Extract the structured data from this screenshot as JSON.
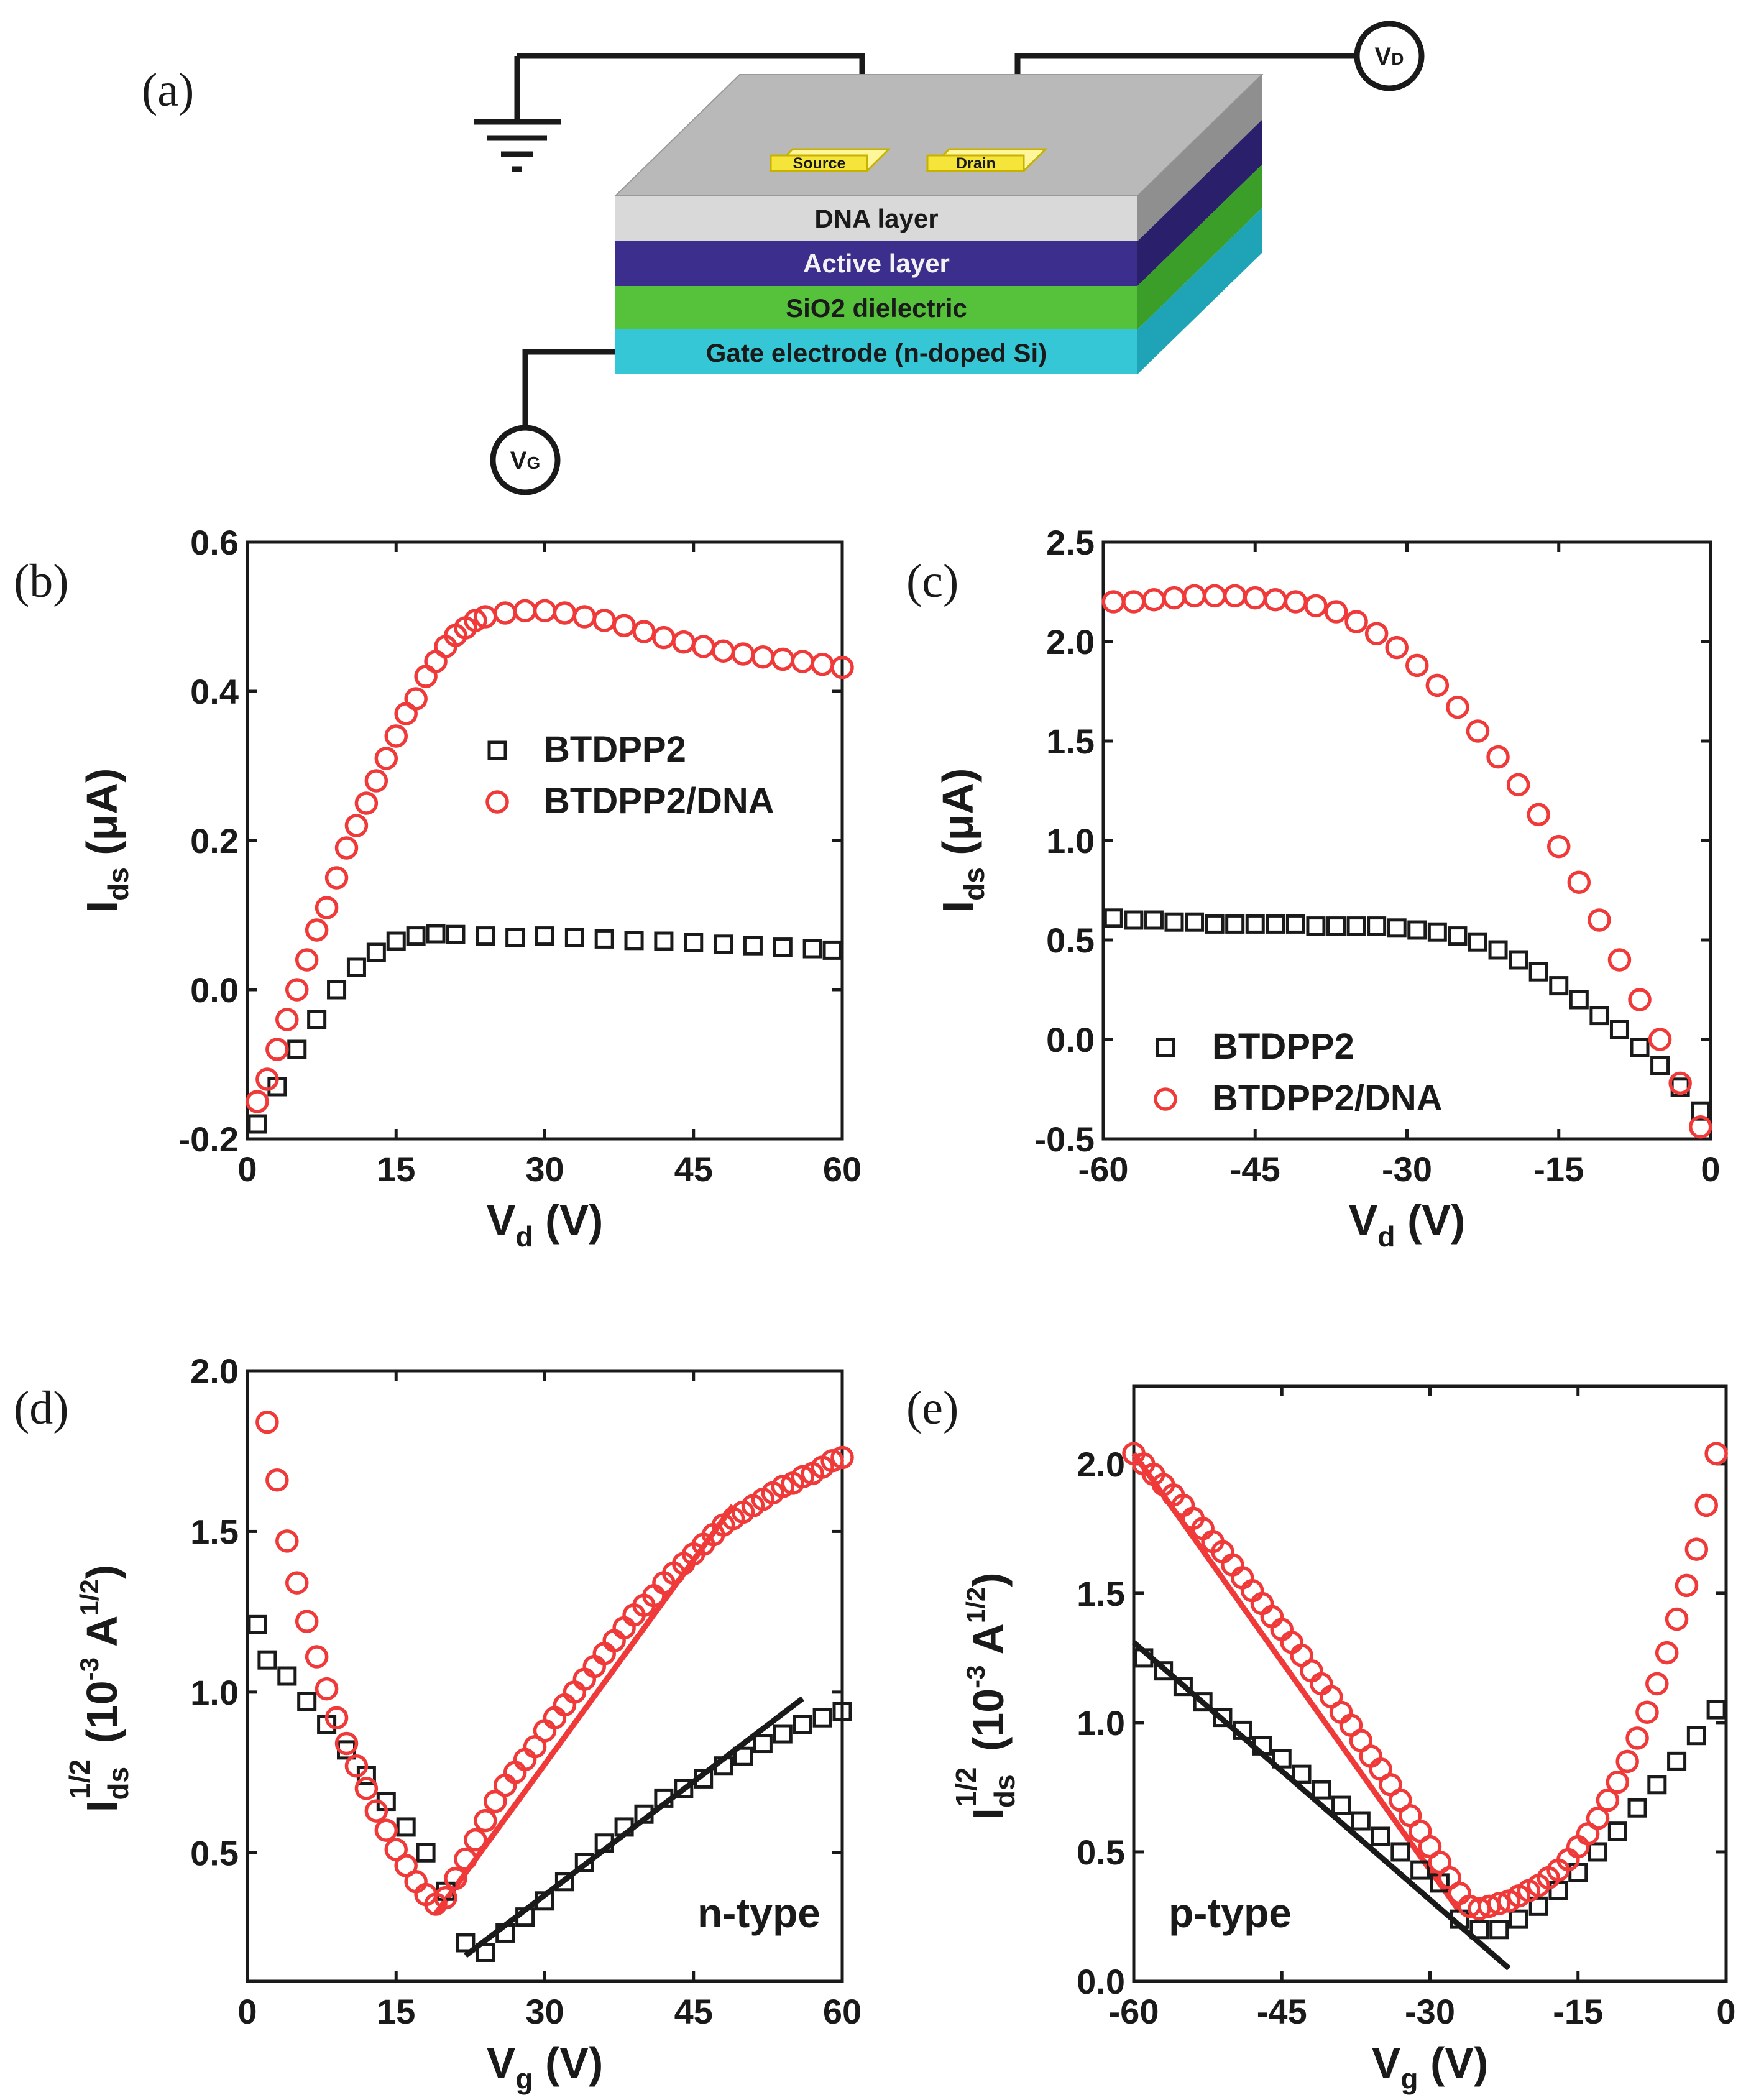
{
  "figure": {
    "panel_a": {
      "label": "(a)",
      "layers": [
        "DNA layer",
        "Active layer",
        "SiO2 dielectric",
        "Gate electrode (n-doped Si)"
      ],
      "source_label": "Source",
      "drain_label": "Drain",
      "vd_label": "V",
      "vd_sub": "D",
      "vg_label": "V",
      "vg_sub": "G",
      "colors": {
        "dna": "#c9c9c9",
        "active": "#3c2e8c",
        "sio2": "#56c23c",
        "gate": "#2ec5d6",
        "pad": "#f5e43a"
      }
    }
  },
  "chart_data": [
    {
      "id": "b",
      "label": "(b)",
      "type": "scatter",
      "xlabel": "V",
      "xlabel_sub": "d",
      "xlabel_unit": " (V)",
      "ylabel": "I",
      "ylabel_sub": "ds",
      "ylabel_unit": " (μA)",
      "xlim": [
        0,
        60
      ],
      "ylim": [
        -0.2,
        0.6
      ],
      "xticks": [
        0,
        15,
        30,
        45,
        60
      ],
      "xtick_labels": [
        "0",
        "15",
        "30",
        "45",
        "60"
      ],
      "yticks": [
        -0.2,
        0.0,
        0.2,
        0.4,
        0.6
      ],
      "ytick_labels": [
        "-0.2",
        "0.0",
        "0.2",
        "0.4",
        "0.6"
      ],
      "legend_position": "center-right",
      "series": [
        {
          "name": "BTDPP2",
          "marker": "square",
          "color": "#1a1a1a",
          "x": [
            1,
            3,
            5,
            7,
            9,
            11,
            13,
            15,
            17,
            19,
            21,
            24,
            27,
            30,
            33,
            36,
            39,
            42,
            45,
            48,
            51,
            54,
            57,
            59
          ],
          "y": [
            -0.18,
            -0.13,
            -0.08,
            -0.04,
            0.0,
            0.03,
            0.05,
            0.065,
            0.072,
            0.075,
            0.074,
            0.072,
            0.07,
            0.072,
            0.07,
            0.068,
            0.066,
            0.065,
            0.063,
            0.061,
            0.059,
            0.057,
            0.055,
            0.053
          ]
        },
        {
          "name": "BTDPP2/DNA",
          "marker": "circle",
          "color": "#f03a3a",
          "x": [
            1,
            2,
            3,
            4,
            5,
            6,
            7,
            8,
            9,
            10,
            11,
            12,
            13,
            14,
            15,
            16,
            17,
            18,
            19,
            20,
            21,
            22,
            23,
            24,
            26,
            28,
            30,
            32,
            34,
            36,
            38,
            40,
            42,
            44,
            46,
            48,
            50,
            52,
            54,
            56,
            58,
            60
          ],
          "y": [
            -0.15,
            -0.12,
            -0.08,
            -0.04,
            0.0,
            0.04,
            0.08,
            0.11,
            0.15,
            0.19,
            0.22,
            0.25,
            0.28,
            0.31,
            0.34,
            0.37,
            0.39,
            0.42,
            0.44,
            0.46,
            0.475,
            0.485,
            0.495,
            0.5,
            0.505,
            0.508,
            0.508,
            0.505,
            0.5,
            0.495,
            0.488,
            0.48,
            0.472,
            0.466,
            0.46,
            0.454,
            0.45,
            0.446,
            0.443,
            0.44,
            0.436,
            0.432
          ]
        }
      ]
    },
    {
      "id": "c",
      "label": "(c)",
      "type": "scatter",
      "xlabel": "V",
      "xlabel_sub": "d",
      "xlabel_unit": " (V)",
      "ylabel": "I",
      "ylabel_sub": "ds",
      "ylabel_unit": " (μA)",
      "xlim": [
        -60,
        0
      ],
      "ylim": [
        -0.5,
        2.5
      ],
      "xticks": [
        -60,
        -45,
        -30,
        -15,
        0
      ],
      "xtick_labels": [
        "-60",
        "-45",
        "-30",
        "-15",
        "0"
      ],
      "yticks": [
        -0.5,
        0.0,
        0.5,
        1.0,
        1.5,
        2.0,
        2.5
      ],
      "ytick_labels": [
        "-0.5",
        "0.0",
        "0.5",
        "1.0",
        "1.5",
        "2.0",
        "2.5"
      ],
      "legend_position": "bottom-left",
      "series": [
        {
          "name": "BTDPP2",
          "marker": "square",
          "color": "#1a1a1a",
          "x": [
            -59,
            -57,
            -55,
            -53,
            -51,
            -49,
            -47,
            -45,
            -43,
            -41,
            -39,
            -37,
            -35,
            -33,
            -31,
            -29,
            -27,
            -25,
            -23,
            -21,
            -19,
            -17,
            -15,
            -13,
            -11,
            -9,
            -7,
            -5,
            -3,
            -1
          ],
          "y": [
            0.61,
            0.6,
            0.6,
            0.59,
            0.59,
            0.58,
            0.58,
            0.58,
            0.58,
            0.58,
            0.57,
            0.57,
            0.57,
            0.57,
            0.56,
            0.55,
            0.54,
            0.52,
            0.49,
            0.45,
            0.4,
            0.34,
            0.27,
            0.2,
            0.12,
            0.05,
            -0.04,
            -0.13,
            -0.24,
            -0.36
          ]
        },
        {
          "name": "BTDPP2/DNA",
          "marker": "circle",
          "color": "#f03a3a",
          "x": [
            -59,
            -57,
            -55,
            -53,
            -51,
            -49,
            -47,
            -45,
            -43,
            -41,
            -39,
            -37,
            -35,
            -33,
            -31,
            -29,
            -27,
            -25,
            -23,
            -21,
            -19,
            -17,
            -15,
            -13,
            -11,
            -9,
            -7,
            -5,
            -3,
            -1
          ],
          "y": [
            2.2,
            2.2,
            2.21,
            2.22,
            2.23,
            2.23,
            2.23,
            2.22,
            2.21,
            2.2,
            2.18,
            2.15,
            2.1,
            2.04,
            1.97,
            1.88,
            1.78,
            1.67,
            1.55,
            1.42,
            1.28,
            1.13,
            0.97,
            0.79,
            0.6,
            0.4,
            0.2,
            0.0,
            -0.22,
            -0.44
          ]
        }
      ]
    },
    {
      "id": "d",
      "label": "(d)",
      "type": "scatter",
      "xlabel": "V",
      "xlabel_sub": "g",
      "xlabel_unit": " (V)",
      "ylabel": "I",
      "ylabel_sub": "ds",
      "ylabel_sup": "1/2",
      "ylabel_unit": " (10",
      "ylabel_unit_sup": "-3",
      "ylabel_unit2": " A",
      "ylabel_unit2_sup": "1/2",
      "ylabel_close": ")",
      "xlim": [
        0,
        60
      ],
      "ylim": [
        0.1,
        2.0
      ],
      "xticks": [
        0,
        15,
        30,
        45,
        60
      ],
      "xtick_labels": [
        "0",
        "15",
        "30",
        "45",
        "60"
      ],
      "yticks": [
        0.5,
        1.0,
        1.5,
        2.0
      ],
      "ytick_labels": [
        "0.5",
        "1.0",
        "1.5",
        "2.0"
      ],
      "annotation": "n-type",
      "series": [
        {
          "name": "BTDPP2",
          "marker": "square",
          "color": "#1a1a1a",
          "x": [
            1,
            2,
            4,
            6,
            8,
            10,
            12,
            14,
            16,
            18,
            20,
            22,
            24,
            26,
            28,
            30,
            32,
            34,
            36,
            38,
            40,
            42,
            44,
            46,
            48,
            50,
            52,
            54,
            56,
            58,
            60
          ],
          "y": [
            1.21,
            1.1,
            1.05,
            0.97,
            0.9,
            0.82,
            0.74,
            0.66,
            0.58,
            0.5,
            0.38,
            0.22,
            0.19,
            0.25,
            0.3,
            0.35,
            0.41,
            0.47,
            0.53,
            0.58,
            0.62,
            0.67,
            0.7,
            0.73,
            0.77,
            0.8,
            0.84,
            0.87,
            0.9,
            0.92,
            0.94
          ]
        },
        {
          "name": "BTDPP2/DNA",
          "marker": "circle",
          "color": "#f03a3a",
          "x": [
            2,
            3,
            4,
            5,
            6,
            7,
            8,
            9,
            10,
            11,
            12,
            13,
            14,
            15,
            16,
            17,
            18,
            19,
            20,
            21,
            22,
            23,
            24,
            25,
            26,
            27,
            28,
            29,
            30,
            31,
            32,
            33,
            34,
            35,
            36,
            37,
            38,
            39,
            40,
            41,
            42,
            43,
            44,
            45,
            46,
            47,
            48,
            49,
            50,
            51,
            52,
            53,
            54,
            55,
            56,
            57,
            58,
            59,
            60
          ],
          "y": [
            1.84,
            1.66,
            1.47,
            1.34,
            1.22,
            1.11,
            1.01,
            0.92,
            0.84,
            0.77,
            0.7,
            0.63,
            0.57,
            0.51,
            0.46,
            0.41,
            0.37,
            0.34,
            0.36,
            0.42,
            0.48,
            0.54,
            0.6,
            0.66,
            0.71,
            0.75,
            0.79,
            0.83,
            0.88,
            0.92,
            0.96,
            1.0,
            1.04,
            1.08,
            1.12,
            1.16,
            1.2,
            1.24,
            1.27,
            1.3,
            1.34,
            1.37,
            1.4,
            1.43,
            1.46,
            1.49,
            1.52,
            1.54,
            1.56,
            1.58,
            1.6,
            1.62,
            1.64,
            1.65,
            1.67,
            1.68,
            1.7,
            1.72,
            1.73
          ]
        }
      ],
      "fits": [
        {
          "name": "BTDPP2 fit",
          "color": "#1a1a1a",
          "x": [
            22,
            56
          ],
          "y": [
            0.18,
            0.98
          ]
        },
        {
          "name": "BTDPP2/DNA fit",
          "color": "#f03a3a",
          "x": [
            19,
            49
          ],
          "y": [
            0.31,
            1.58
          ]
        }
      ]
    },
    {
      "id": "e",
      "label": "(e)",
      "type": "scatter",
      "xlabel": "V",
      "xlabel_sub": "g",
      "xlabel_unit": " (V)",
      "ylabel": "I",
      "ylabel_sub": "ds",
      "ylabel_sup": "1/2",
      "ylabel_unit": " (10",
      "ylabel_unit_sup": "-3",
      "ylabel_unit2": " A",
      "ylabel_unit2_sup": "1/2",
      "ylabel_close": ")",
      "xlim": [
        -60,
        0
      ],
      "ylim": [
        0.0,
        2.3
      ],
      "xticks": [
        -60,
        -45,
        -30,
        -15,
        0
      ],
      "xtick_labels": [
        "-60",
        "-45",
        "-30",
        "-15",
        "0"
      ],
      "yticks": [
        0.0,
        0.5,
        1.0,
        1.5,
        2.0
      ],
      "ytick_labels": [
        "0.0",
        "0.5",
        "1.0",
        "1.5",
        "2.0"
      ],
      "annotation": "p-type",
      "series": [
        {
          "name": "BTDPP2",
          "marker": "square",
          "color": "#1a1a1a",
          "x": [
            -59,
            -57,
            -55,
            -53,
            -51,
            -49,
            -47,
            -45,
            -43,
            -41,
            -39,
            -37,
            -35,
            -33,
            -31,
            -29,
            -27,
            -25,
            -23,
            -21,
            -19,
            -17,
            -15,
            -13,
            -11,
            -9,
            -7,
            -5,
            -3,
            -1
          ],
          "y": [
            1.25,
            1.2,
            1.14,
            1.08,
            1.02,
            0.97,
            0.91,
            0.86,
            0.8,
            0.74,
            0.68,
            0.62,
            0.56,
            0.5,
            0.43,
            0.38,
            0.24,
            0.2,
            0.2,
            0.24,
            0.29,
            0.35,
            0.42,
            0.5,
            0.58,
            0.67,
            0.76,
            0.85,
            0.95,
            1.05
          ]
        },
        {
          "name": "BTDPP2/DNA",
          "marker": "circle",
          "color": "#f03a3a",
          "x": [
            -60,
            -59,
            -58,
            -57,
            -56,
            -55,
            -54,
            -53,
            -52,
            -51,
            -50,
            -49,
            -48,
            -47,
            -46,
            -45,
            -44,
            -43,
            -42,
            -41,
            -40,
            -39,
            -38,
            -37,
            -36,
            -35,
            -34,
            -33,
            -32,
            -31,
            -30,
            -29,
            -28,
            -27,
            -26,
            -25,
            -24,
            -23,
            -22,
            -21,
            -20,
            -19,
            -18,
            -17,
            -16,
            -15,
            -14,
            -13,
            -12,
            -11,
            -10,
            -9,
            -8,
            -7,
            -6,
            -5,
            -4,
            -3,
            -2,
            -1
          ],
          "y": [
            2.04,
            2.0,
            1.96,
            1.92,
            1.88,
            1.84,
            1.79,
            1.75,
            1.7,
            1.66,
            1.61,
            1.56,
            1.51,
            1.46,
            1.41,
            1.36,
            1.31,
            1.26,
            1.2,
            1.15,
            1.1,
            1.04,
            0.99,
            0.93,
            0.87,
            0.82,
            0.76,
            0.7,
            0.64,
            0.58,
            0.52,
            0.46,
            0.4,
            0.34,
            0.29,
            0.28,
            0.29,
            0.3,
            0.31,
            0.33,
            0.35,
            0.37,
            0.4,
            0.43,
            0.47,
            0.52,
            0.57,
            0.63,
            0.7,
            0.77,
            0.85,
            0.94,
            1.04,
            1.15,
            1.27,
            1.4,
            1.53,
            1.67,
            1.84,
            2.04
          ]
        }
      ],
      "fits": [
        {
          "name": "BTDPP2 fit",
          "color": "#1a1a1a",
          "x": [
            -60,
            -22
          ],
          "y": [
            1.31,
            0.05
          ]
        },
        {
          "name": "BTDPP2/DNA fit",
          "color": "#f03a3a",
          "x": [
            -60,
            -27
          ],
          "y": [
            2.04,
            0.27
          ]
        }
      ]
    }
  ]
}
